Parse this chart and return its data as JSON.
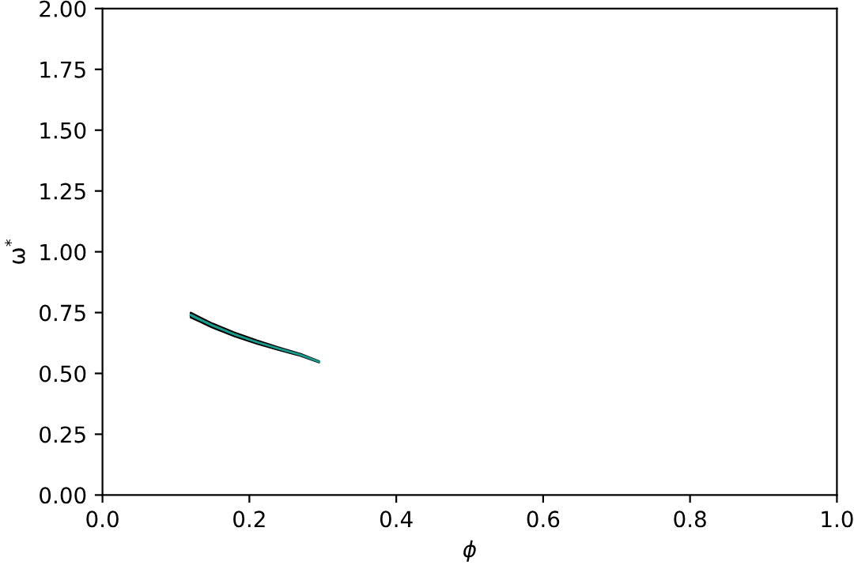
{
  "chart_data": {
    "type": "line",
    "xlabel": "ϕ",
    "ylabel": "ω$^{*}$",
    "xlim": [
      0,
      1
    ],
    "ylim": [
      0,
      2
    ],
    "xticks": [
      {
        "value": 0,
        "label": "0.0"
      },
      {
        "value": 0.2,
        "label": "0.2"
      },
      {
        "value": 0.4,
        "label": "0.4"
      },
      {
        "value": 0.6,
        "label": "0.6"
      },
      {
        "value": 0.8,
        "label": "0.8"
      },
      {
        "value": 1,
        "label": "1.0"
      }
    ],
    "yticks": [
      {
        "value": 0,
        "label": "0.00"
      },
      {
        "value": 0.25,
        "label": "0.25"
      },
      {
        "value": 0.5,
        "label": "0.50"
      },
      {
        "value": 0.75,
        "label": "0.75"
      },
      {
        "value": 1,
        "label": "1.00"
      },
      {
        "value": 1.25,
        "label": "1.25"
      },
      {
        "value": 1.5,
        "label": "1.50"
      },
      {
        "value": 1.75,
        "label": "1.75"
      },
      {
        "value": 2,
        "label": "2.00"
      }
    ],
    "grid": false,
    "marker": "none",
    "line_style": "solid",
    "series": [
      {
        "color": "#1a9a8a",
        "x": [
          0.12,
          0.15,
          0.18,
          0.21,
          0.24,
          0.27,
          0.295
        ],
        "values": [
          0.74,
          0.697,
          0.66,
          0.629,
          0.602,
          0.576,
          0.548
        ],
        "lower": [
          0.73,
          0.688,
          0.652,
          0.622,
          0.596,
          0.572,
          0.545
        ],
        "upper": [
          0.75,
          0.705,
          0.668,
          0.636,
          0.607,
          0.58,
          0.55
        ]
      }
    ]
  }
}
